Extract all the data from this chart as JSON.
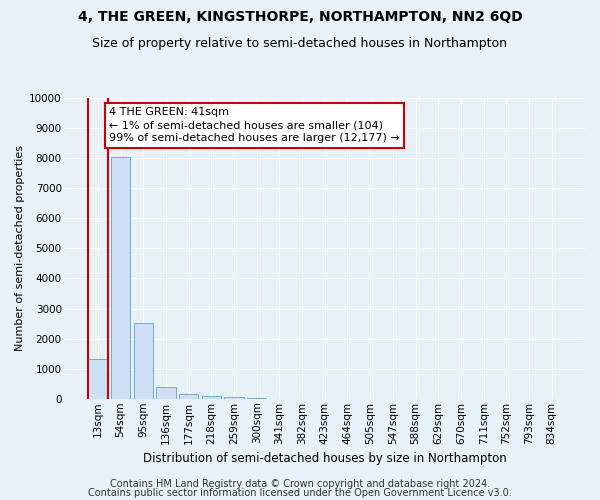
{
  "title1": "4, THE GREEN, KINGSTHORPE, NORTHAMPTON, NN2 6QD",
  "title2": "Size of property relative to semi-detached houses in Northampton",
  "xlabel": "Distribution of semi-detached houses by size in Northampton",
  "ylabel": "Number of semi-detached properties",
  "categories": [
    "13sqm",
    "54sqm",
    "95sqm",
    "136sqm",
    "177sqm",
    "218sqm",
    "259sqm",
    "300sqm",
    "341sqm",
    "382sqm",
    "423sqm",
    "464sqm",
    "505sqm",
    "547sqm",
    "588sqm",
    "629sqm",
    "670sqm",
    "711sqm",
    "752sqm",
    "793sqm",
    "834sqm"
  ],
  "values": [
    1320,
    8050,
    2520,
    390,
    145,
    90,
    50,
    25,
    0,
    0,
    0,
    0,
    0,
    0,
    0,
    0,
    0,
    0,
    0,
    0,
    0
  ],
  "bar_color": "#ccdff5",
  "bar_edge_color": "#6aaed6",
  "highlight_line_color": "#cc0000",
  "annotation_text": "4 THE GREEN: 41sqm\n← 1% of semi-detached houses are smaller (104)\n99% of semi-detached houses are larger (12,177) →",
  "annotation_box_color": "#ffffff",
  "annotation_box_edge": "#cc0000",
  "ylim": [
    0,
    10000
  ],
  "yticks": [
    0,
    1000,
    2000,
    3000,
    4000,
    5000,
    6000,
    7000,
    8000,
    9000,
    10000
  ],
  "footer_line1": "Contains HM Land Registry data © Crown copyright and database right 2024.",
  "footer_line2": "Contains public sector information licensed under the Open Government Licence v3.0.",
  "bg_color": "#e8f0f8",
  "grid_color": "#ffffff",
  "title1_fontsize": 10,
  "title2_fontsize": 9,
  "xlabel_fontsize": 8.5,
  "ylabel_fontsize": 8,
  "tick_fontsize": 7.5,
  "annotation_fontsize": 8,
  "footer_fontsize": 7
}
